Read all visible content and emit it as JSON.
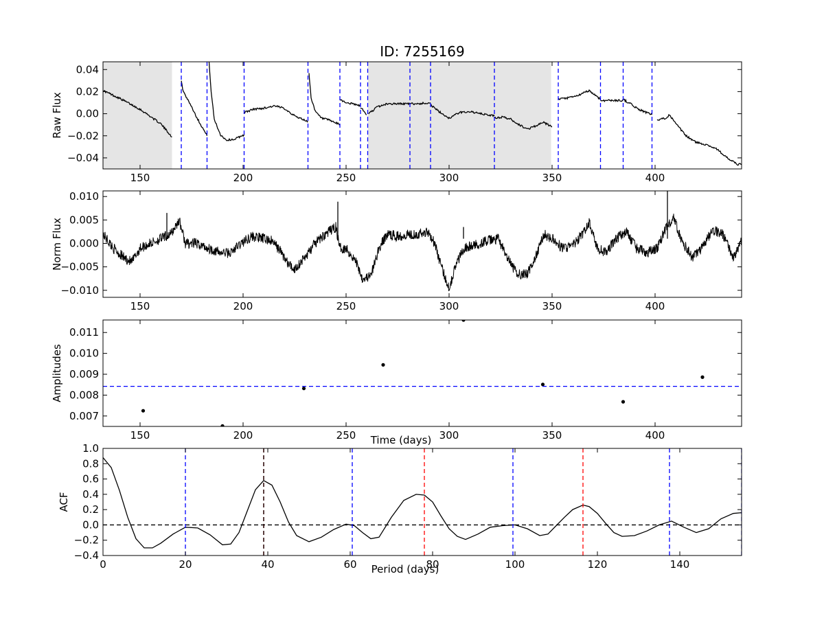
{
  "figure": {
    "title": "ID: 7255169"
  },
  "chart_data": [
    {
      "id": "raw",
      "type": "line",
      "ylabel": "Raw Flux",
      "xlabel": "",
      "xlim": [
        132,
        442
      ],
      "ylim": [
        -0.05,
        0.047
      ],
      "xticks": [
        150,
        200,
        250,
        300,
        350,
        400
      ],
      "yticks": [
        -0.04,
        -0.02,
        0.0,
        0.02,
        0.04
      ],
      "ytick_labels": [
        "−0.04",
        "−0.02",
        "0.00",
        "0.02",
        "0.04"
      ],
      "shaded_regions": [
        [
          132,
          165.5
        ],
        [
          260.5,
          349.5
        ]
      ],
      "vlines": [
        170,
        182.5,
        200.5,
        231.5,
        247,
        257,
        260.5,
        281,
        291,
        322,
        353,
        373.5,
        384.5,
        398.5
      ],
      "vline_color": "#0000ff",
      "line_color": "#000000",
      "segments": [
        {
          "x": [
            132,
            140,
            150,
            160,
            165.5
          ],
          "y": [
            0.021,
            0.014,
            0.004,
            -0.009,
            -0.021
          ]
        },
        {
          "x": [
            170,
            171,
            174,
            178,
            182.5
          ],
          "y": [
            0.029,
            0.02,
            0.01,
            -0.005,
            -0.02
          ]
        },
        {
          "x": [
            183.5,
            184.5,
            186,
            189,
            192,
            196,
            200.5
          ],
          "y": [
            0.047,
            0.02,
            -0.005,
            -0.019,
            -0.024,
            -0.023,
            -0.019
          ]
        },
        {
          "x": [
            200.5,
            205,
            210,
            215,
            220,
            225,
            231.5
          ],
          "y": [
            0.001,
            0.004,
            0.005,
            0.007,
            0.005,
            -0.002,
            -0.007
          ]
        },
        {
          "x": [
            232,
            233,
            235,
            238,
            242,
            247
          ],
          "y": [
            0.036,
            0.015,
            0.002,
            -0.004,
            -0.006,
            -0.01
          ]
        },
        {
          "x": [
            247,
            250,
            253,
            257
          ],
          "y": [
            0.013,
            0.01,
            0.009,
            0.007
          ]
        },
        {
          "x": [
            257,
            260
          ],
          "y": [
            0.006,
            -0.001
          ]
        },
        {
          "x": [
            261,
            265,
            270,
            281
          ],
          "y": [
            0.0,
            0.006,
            0.009,
            0.009
          ]
        },
        {
          "x": [
            281,
            285,
            291
          ],
          "y": [
            0.009,
            0.009,
            0.01
          ]
        },
        {
          "x": [
            291,
            295,
            300,
            305,
            310,
            315,
            322
          ],
          "y": [
            0.008,
            0.002,
            -0.004,
            0.001,
            0.002,
            0.0,
            -0.002
          ]
        },
        {
          "x": [
            322,
            326,
            330,
            334,
            338,
            342,
            346,
            350
          ],
          "y": [
            -0.004,
            -0.003,
            -0.005,
            -0.01,
            -0.014,
            -0.011,
            -0.008,
            -0.012
          ]
        },
        {
          "x": [
            353,
            357,
            362,
            368,
            373.5
          ],
          "y": [
            0.013,
            0.014,
            0.016,
            0.021,
            0.013
          ]
        },
        {
          "x": [
            373.5,
            378,
            384.5
          ],
          "y": [
            0.012,
            0.012,
            0.012
          ]
        },
        {
          "x": [
            384.5,
            388,
            392,
            398.5
          ],
          "y": [
            0.013,
            0.009,
            0.004,
            -0.001
          ]
        },
        {
          "x": [
            401,
            405,
            407,
            410,
            415,
            420,
            425,
            430,
            435,
            440,
            442
          ],
          "y": [
            -0.006,
            -0.004,
            -0.001,
            -0.009,
            -0.02,
            -0.026,
            -0.028,
            -0.032,
            -0.04,
            -0.046,
            -0.046
          ]
        }
      ]
    },
    {
      "id": "norm",
      "type": "line",
      "ylabel": "Norm Flux",
      "xlabel": "",
      "xlim": [
        132,
        442
      ],
      "ylim": [
        -0.0115,
        0.0112
      ],
      "xticks": [
        150,
        200,
        250,
        300,
        350,
        400
      ],
      "yticks": [
        -0.01,
        -0.005,
        0.0,
        0.005,
        0.01
      ],
      "ytick_labels": [
        "−0.010",
        "−0.005",
        "0.000",
        "0.005",
        "0.010"
      ],
      "line_color": "#000000",
      "noise": 0.0011,
      "x": [
        132,
        137,
        142,
        146,
        150,
        155,
        160,
        165,
        169,
        172,
        177,
        183,
        189,
        194,
        199,
        204,
        210,
        214,
        218,
        222,
        225,
        230,
        235,
        240,
        245,
        247,
        250,
        255,
        258,
        262,
        266,
        270,
        275,
        280,
        285,
        290,
        293,
        297,
        300,
        303,
        307,
        312,
        318,
        324,
        328,
        333,
        338,
        342,
        346,
        350,
        355,
        360,
        365,
        368,
        372,
        376,
        381,
        386,
        391,
        396,
        401,
        405,
        409,
        413,
        418,
        423,
        428,
        433,
        438,
        442
      ],
      "y": [
        0.002,
        -0.001,
        -0.003,
        -0.004,
        -0.001,
        0.0,
        0.001,
        0.002,
        0.005,
        0.0,
        0.0,
        -0.001,
        -0.002,
        -0.002,
        0.0,
        0.0015,
        0.001,
        0.0005,
        -0.0015,
        -0.0045,
        -0.0055,
        -0.003,
        0.0,
        0.002,
        0.0035,
        -0.001,
        -0.001,
        -0.004,
        -0.0075,
        -0.007,
        -0.001,
        0.002,
        0.0015,
        0.002,
        0.002,
        0.0025,
        0.0,
        -0.006,
        -0.0095,
        -0.005,
        -0.001,
        -0.0005,
        0.0005,
        0.001,
        -0.003,
        -0.0065,
        -0.0065,
        -0.003,
        0.002,
        0.001,
        -0.001,
        -0.0005,
        0.002,
        0.0045,
        -0.001,
        -0.002,
        0.001,
        0.0025,
        -0.001,
        -0.002,
        -0.001,
        0.003,
        0.0055,
        0.0005,
        -0.003,
        -0.001,
        0.003,
        0.002,
        -0.003,
        0.0005
      ],
      "spikes": [
        {
          "x": 163,
          "y": 0.0065
        },
        {
          "x": 246,
          "y": 0.0089
        },
        {
          "x": 406,
          "y": 0.0115
        },
        {
          "x": 307,
          "y": 0.0035
        }
      ]
    },
    {
      "id": "amp",
      "type": "scatter",
      "ylabel": "Amplitudes",
      "xlabel": "Time (days)",
      "xlim": [
        132,
        442
      ],
      "ylim": [
        0.0065,
        0.0116
      ],
      "xticks": [
        150,
        200,
        250,
        300,
        350,
        400
      ],
      "yticks": [
        0.007,
        0.008,
        0.009,
        0.01,
        0.011
      ],
      "ytick_labels": [
        "0.007",
        "0.008",
        "0.009",
        "0.010",
        "0.011"
      ],
      "hline": 0.00842,
      "hline_color": "#0000ff",
      "x": [
        151.5,
        190,
        229.5,
        268,
        307,
        345.5,
        384.5,
        423
      ],
      "y": [
        0.00725,
        0.00652,
        0.00832,
        0.00945,
        0.0116,
        0.00851,
        0.00768,
        0.00886
      ]
    },
    {
      "id": "acf",
      "type": "line",
      "ylabel": "ACF",
      "xlabel": "Period (days)",
      "xlim": [
        0,
        155
      ],
      "ylim": [
        -0.4,
        1.0
      ],
      "xticks": [
        0,
        20,
        40,
        60,
        80,
        100,
        120,
        140
      ],
      "yticks": [
        -0.4,
        -0.2,
        0.0,
        0.2,
        0.4,
        0.6,
        0.8,
        1.0
      ],
      "ytick_labels": [
        "−0.4",
        "−0.2",
        "0.0",
        "0.2",
        "0.4",
        "0.6",
        "0.8",
        "1.0"
      ],
      "hline": 0.0,
      "hline_color": "#000000",
      "line_color": "#000000",
      "vlines_blue": [
        20,
        60.5,
        99.5,
        137.5,
        155
      ],
      "vlines_red": [
        78,
        116.5
      ],
      "vline_black": 39,
      "x": [
        0,
        2,
        4,
        6,
        8,
        10,
        12,
        14,
        17,
        20,
        23,
        26,
        29,
        31,
        33,
        35,
        37,
        39,
        41,
        43,
        45,
        47,
        50,
        53,
        56,
        59,
        61,
        63,
        65,
        67,
        70,
        73,
        76,
        78,
        80,
        82,
        84,
        86,
        88,
        91,
        94,
        97,
        100,
        103,
        106,
        108,
        110,
        112,
        114,
        116.5,
        118,
        120,
        122,
        124,
        126,
        129,
        132,
        135,
        138,
        141,
        144,
        147,
        150,
        153,
        155
      ],
      "y": [
        0.88,
        0.75,
        0.45,
        0.1,
        -0.18,
        -0.3,
        -0.3,
        -0.24,
        -0.12,
        -0.03,
        -0.04,
        -0.13,
        -0.26,
        -0.25,
        -0.1,
        0.18,
        0.46,
        0.58,
        0.52,
        0.3,
        0.04,
        -0.14,
        -0.22,
        -0.16,
        -0.06,
        0.01,
        -0.01,
        -0.1,
        -0.18,
        -0.16,
        0.1,
        0.32,
        0.4,
        0.39,
        0.3,
        0.12,
        -0.05,
        -0.15,
        -0.19,
        -0.12,
        -0.03,
        -0.01,
        0.0,
        -0.05,
        -0.14,
        -0.12,
        -0.01,
        0.1,
        0.2,
        0.26,
        0.24,
        0.15,
        0.02,
        -0.1,
        -0.15,
        -0.14,
        -0.08,
        0.0,
        0.05,
        -0.03,
        -0.1,
        -0.05,
        0.08,
        0.15,
        0.16
      ]
    }
  ]
}
